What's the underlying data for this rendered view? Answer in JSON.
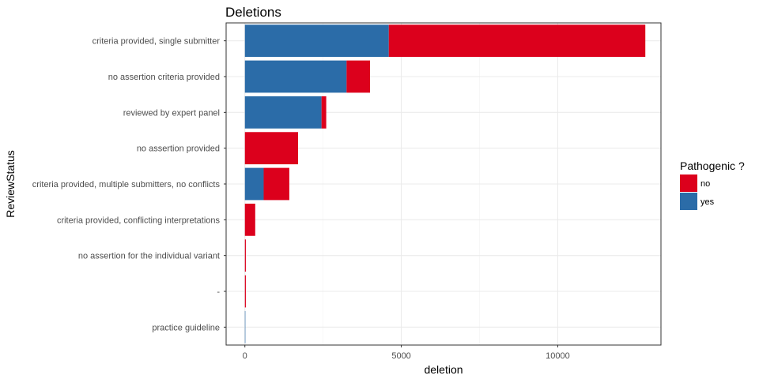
{
  "chart_data": {
    "type": "bar",
    "orientation": "horizontal",
    "stacked": true,
    "title": "Deletions",
    "xlabel": "deletion",
    "ylabel": "ReviewStatus",
    "xlim": [
      -600,
      13300
    ],
    "x_ticks": [
      0,
      5000,
      10000
    ],
    "grid": true,
    "legend": {
      "title": "Pathogenic ?",
      "position": "right"
    },
    "categories": [
      "criteria provided, single submitter",
      "no assertion criteria provided",
      "reviewed by expert panel",
      "no assertion provided",
      "criteria provided, multiple submitters, no conflicts",
      "criteria provided, conflicting interpretations",
      "no assertion for the individual variant",
      "-",
      "practice guideline"
    ],
    "series": [
      {
        "name": "yes",
        "color": "#2b6ca8",
        "values": [
          4600,
          3250,
          2450,
          0,
          600,
          0,
          0,
          0,
          5
        ]
      },
      {
        "name": "no",
        "color": "#dc001c",
        "values": [
          8200,
          750,
          150,
          1700,
          820,
          330,
          30,
          30,
          0
        ]
      }
    ],
    "legend_order": [
      "no",
      "yes"
    ]
  }
}
